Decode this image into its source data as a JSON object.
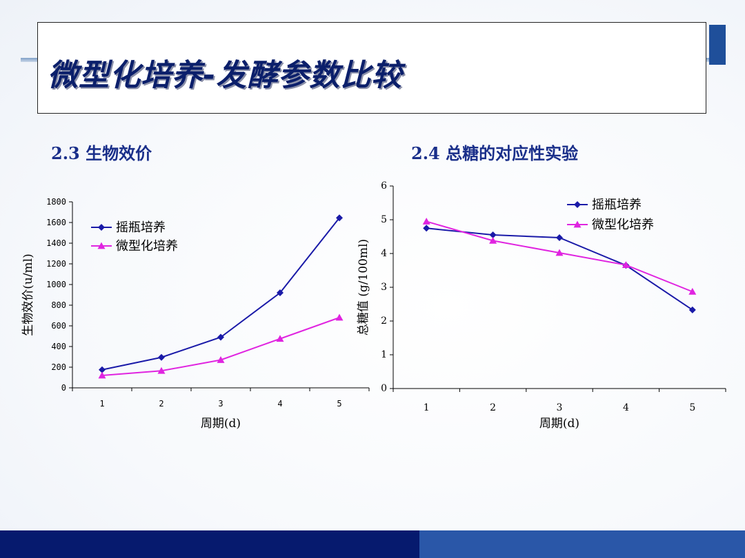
{
  "slide": {
    "title": "微型化培养-发酵参数比较"
  },
  "sections": {
    "left_title": "2.3 生物效价",
    "right_title": "2.4 总糖的对应性实验"
  },
  "colors": {
    "series_shake": "#1a1aa8",
    "series_micro": "#e024e0",
    "title_text": "#0b1f6b",
    "section_text": "#1a2f8a",
    "footer_dark": "#061a6e",
    "footer_light": "#2a57a8"
  },
  "chart_data": [
    {
      "type": "line",
      "xlabel": "周期(d)",
      "ylabel": "生物效价(u/ml)",
      "categories": [
        "1",
        "2",
        "3",
        "4",
        "5"
      ],
      "ylim": [
        0,
        1800
      ],
      "yticks": [
        "0",
        "200",
        "400",
        "600",
        "800",
        "1000",
        "1200",
        "1400",
        "1600",
        "1800"
      ],
      "legend_position": "top-left",
      "grid": false,
      "series": [
        {
          "name": "摇瓶培养",
          "marker": "diamond",
          "values": [
            175,
            295,
            490,
            920,
            1645
          ]
        },
        {
          "name": "微型化培养",
          "marker": "triangle",
          "values": [
            120,
            165,
            270,
            475,
            680
          ]
        }
      ]
    },
    {
      "type": "line",
      "xlabel": "周期(d)",
      "ylabel": "总糖值 (g/100ml)",
      "categories": [
        "1",
        "2",
        "3",
        "4",
        "5"
      ],
      "ylim": [
        0,
        6
      ],
      "yticks": [
        "0",
        "1",
        "2",
        "3",
        "4",
        "5",
        "6"
      ],
      "legend_position": "top-right",
      "grid": false,
      "series": [
        {
          "name": "摇瓶培养",
          "marker": "diamond",
          "values": [
            4.75,
            4.55,
            4.47,
            3.65,
            2.33
          ]
        },
        {
          "name": "微型化培养",
          "marker": "triangle",
          "values": [
            4.95,
            4.38,
            4.02,
            3.66,
            2.87
          ]
        }
      ]
    }
  ]
}
